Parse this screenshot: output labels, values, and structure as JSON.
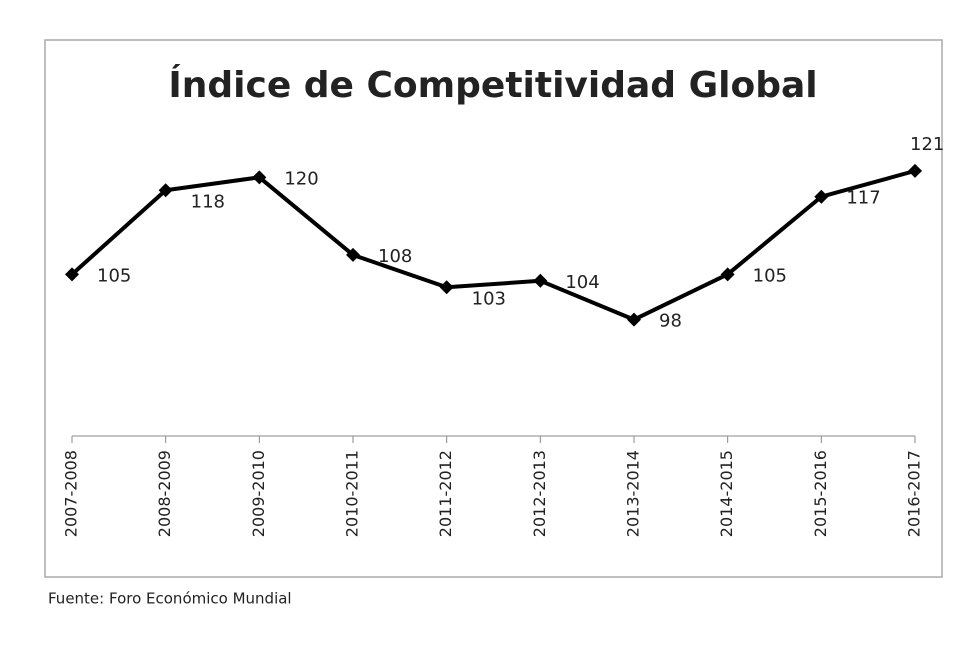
{
  "chart_data": {
    "type": "line",
    "title": "Índice de Competitividad Global",
    "categories": [
      "2007-2008",
      "2008-2009",
      "2009-2010",
      "2010-2011",
      "2011-2012",
      "2012-2013",
      "2013-2014",
      "2014-2015",
      "2015-2016",
      "2016-2017"
    ],
    "series": [
      {
        "name": "Índice de Competitividad Global",
        "color": "#000000",
        "values": [
          105,
          118,
          120,
          108,
          103,
          104,
          98,
          105,
          117,
          121
        ]
      }
    ],
    "ylim": [
      80,
      140
    ],
    "source": "Fuente: Foro Económico Mundial"
  }
}
